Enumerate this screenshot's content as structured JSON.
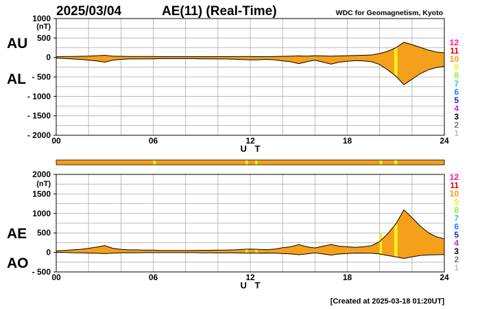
{
  "header": {
    "date": "2025/03/04",
    "title": "AE(11) (Real-Time)",
    "source": "WDC for Geomagnetism, Kyoto"
  },
  "footer": {
    "created": "[Created at 2025-03-18 01:20UT]"
  },
  "colors": {
    "fill": "#f5a01a",
    "highlight": "#f0f020",
    "strip_base": "#f5a01a",
    "grid": "#aaaaaa",
    "line": "#000000"
  },
  "station_scale": {
    "labels": [
      "12",
      "11",
      "10",
      "9",
      "8",
      "7",
      "6",
      "5",
      "4",
      "3",
      "2",
      "1"
    ],
    "colors": [
      "#ff1493",
      "#e00000",
      "#ff9900",
      "#f0f020",
      "#90ee30",
      "#22cccc",
      "#1e7bff",
      "#2020c0",
      "#cc22cc",
      "#000000",
      "#777777",
      "#c0c0c0"
    ]
  },
  "chart_data": [
    {
      "type": "area",
      "name": "AU/AL",
      "side_labels": [
        "AU",
        "AL"
      ],
      "unit": "(nT)",
      "xlabel": "U T",
      "xlim": [
        0,
        24
      ],
      "ylim": [
        -2000,
        1000
      ],
      "yticks": [
        1000,
        500,
        0,
        -500,
        -1000,
        -1500,
        -2000
      ],
      "ytick_labels": [
        "1000",
        "500",
        "0",
        "- 500",
        "- 1000",
        "- 1500",
        "- 2000"
      ],
      "xticks": [
        0,
        6,
        12,
        18,
        24
      ],
      "xtick_labels": [
        "00",
        "06",
        "12",
        "18",
        "24"
      ],
      "grid": true,
      "x": [
        0,
        0.5,
        1,
        1.5,
        2,
        2.5,
        3,
        3.5,
        4,
        4.5,
        5,
        5.5,
        6,
        6.5,
        7,
        7.5,
        8,
        8.5,
        9,
        9.5,
        10,
        10.5,
        11,
        11.5,
        12,
        12.5,
        13,
        13.5,
        14,
        14.5,
        15,
        15.5,
        16,
        16.5,
        17,
        17.5,
        18,
        18.5,
        19,
        19.5,
        20,
        20.5,
        21,
        21.5,
        22,
        22.5,
        23,
        23.5,
        24
      ],
      "series": [
        {
          "name": "AU",
          "values": [
            20,
            25,
            25,
            30,
            35,
            45,
            55,
            35,
            30,
            25,
            25,
            25,
            25,
            20,
            20,
            20,
            20,
            20,
            20,
            20,
            20,
            20,
            20,
            25,
            25,
            20,
            20,
            25,
            30,
            35,
            40,
            35,
            45,
            40,
            35,
            40,
            45,
            50,
            55,
            65,
            100,
            160,
            250,
            390,
            330,
            260,
            190,
            140,
            120
          ]
        },
        {
          "name": "AL",
          "values": [
            -20,
            -25,
            -40,
            -50,
            -70,
            -90,
            -120,
            -70,
            -50,
            -40,
            -40,
            -35,
            -35,
            -30,
            -30,
            -30,
            -30,
            -30,
            -35,
            -35,
            -40,
            -40,
            -45,
            -55,
            -60,
            -60,
            -50,
            -60,
            -90,
            -110,
            -160,
            -110,
            -70,
            -120,
            -170,
            -120,
            -100,
            -80,
            -90,
            -110,
            -180,
            -320,
            -480,
            -700,
            -560,
            -420,
            -320,
            -260,
            -230
          ]
        }
      ],
      "highlights": [
        {
          "x0": 20.9,
          "x1": 21.1
        }
      ]
    },
    {
      "type": "area",
      "name": "AE/AO",
      "side_labels": [
        "AE",
        "AO"
      ],
      "unit": "(nT)",
      "xlabel": "U T",
      "xlim": [
        0,
        24
      ],
      "ylim": [
        -500,
        2000
      ],
      "yticks": [
        2000,
        1500,
        1000,
        500,
        0,
        -500
      ],
      "ytick_labels": [
        "2000",
        "1500",
        "1000",
        "500",
        "0",
        "- 500"
      ],
      "xticks": [
        0,
        6,
        12,
        18,
        24
      ],
      "xtick_labels": [
        "00",
        "06",
        "12",
        "18",
        "24"
      ],
      "grid": true,
      "x": [
        0,
        0.5,
        1,
        1.5,
        2,
        2.5,
        3,
        3.5,
        4,
        4.5,
        5,
        5.5,
        6,
        6.5,
        7,
        7.5,
        8,
        8.5,
        9,
        9.5,
        10,
        10.5,
        11,
        11.5,
        12,
        12.5,
        13,
        13.5,
        14,
        14.5,
        15,
        15.5,
        16,
        16.5,
        17,
        17.5,
        18,
        18.5,
        19,
        19.5,
        20,
        20.5,
        21,
        21.5,
        22,
        22.5,
        23,
        23.5,
        24
      ],
      "series": [
        {
          "name": "AE",
          "values": [
            40,
            50,
            65,
            80,
            105,
            135,
            175,
            105,
            80,
            65,
            65,
            60,
            60,
            50,
            50,
            50,
            50,
            50,
            55,
            55,
            60,
            60,
            65,
            80,
            85,
            80,
            70,
            85,
            120,
            145,
            200,
            145,
            115,
            160,
            205,
            160,
            145,
            130,
            145,
            175,
            280,
            480,
            730,
            1090,
            890,
            680,
            510,
            400,
            350
          ]
        },
        {
          "name": "AO",
          "values": [
            0,
            0,
            -8,
            -10,
            -18,
            -22,
            -32,
            -18,
            -10,
            -8,
            -8,
            -5,
            -5,
            -5,
            -5,
            -5,
            -5,
            -5,
            -8,
            -8,
            -10,
            -10,
            -12,
            -15,
            -18,
            -20,
            -15,
            -18,
            -30,
            -38,
            -60,
            -38,
            -12,
            -40,
            -68,
            -40,
            -28,
            -15,
            -18,
            -22,
            -40,
            -80,
            -115,
            -155,
            -115,
            -80,
            -65,
            -60,
            -55
          ]
        }
      ],
      "highlights": [
        {
          "x0": 11.7,
          "x1": 11.85
        },
        {
          "x0": 12.3,
          "x1": 12.45
        },
        {
          "x0": 20.0,
          "x1": 20.15
        },
        {
          "x0": 20.9,
          "x1": 21.1
        }
      ]
    }
  ],
  "strip": {
    "highlights": [
      {
        "x0": 6.0,
        "x1": 6.15
      },
      {
        "x0": 11.7,
        "x1": 11.85
      },
      {
        "x0": 12.3,
        "x1": 12.45
      },
      {
        "x0": 20.0,
        "x1": 20.15
      },
      {
        "x0": 20.9,
        "x1": 21.1
      }
    ]
  }
}
